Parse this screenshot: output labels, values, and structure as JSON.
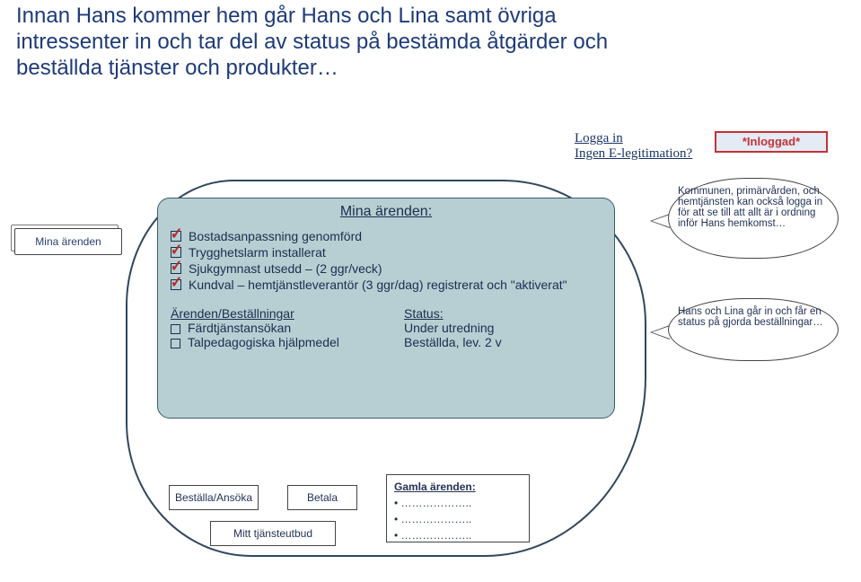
{
  "colors": {
    "heading": "#1e3b78",
    "panel_border": "#30475e",
    "inner_bg": "#b7cfd2",
    "inner_border": "#3a5b6c",
    "text": "#1c2d4f",
    "tick": "#b42b2b",
    "inloggad_border": "#c43138",
    "inloggad_bg": "#e5ebf5",
    "login_link": "#1a3566"
  },
  "heading": "Innan Hans kommer hem går Hans och Lina samt övriga intressenter in och tar del av status på bestämda åtgärder och beställda tjänster och produkter…",
  "login": {
    "line1": "Logga in",
    "line2": "Ingen E-legitimation?",
    "status": "*Inloggad*"
  },
  "left_tab": "Mina ärenden",
  "inner": {
    "title": "Mina ärenden:",
    "checks": [
      "Bostadsanpassning genomförd",
      "Trygghetslarm installerat",
      "Sjukgymnast utsedd – (2 ggr/veck)",
      "Kundval – hemtjänstleverantör (3 ggr/dag) registrerat och \"aktiverat\""
    ],
    "orders_heading_left": "Ärenden/Beställningar",
    "orders_heading_right": "Status:",
    "orders": [
      {
        "name": "Färdtjänstansökan",
        "status": "Under utredning"
      },
      {
        "name": "Talpedagogiska hjälpmedel",
        "status": "Beställda, lev. 2 v"
      }
    ]
  },
  "boxes": {
    "bestalla": "Beställa/Ansöka",
    "betala": "Betala",
    "mitt": "Mitt tjänsteutbud"
  },
  "gamla": {
    "title": "Gamla ärenden:",
    "rows": [
      "………………..",
      "………………..",
      "……………….."
    ]
  },
  "bubbles": {
    "b1": "Kommunen, primärvården, och hemtjänsten kan också logga in för att se till att allt är i ordning inför Hans hemkomst…",
    "b2": "Hans och Lina går in och får en status på gjorda beställningar…"
  }
}
